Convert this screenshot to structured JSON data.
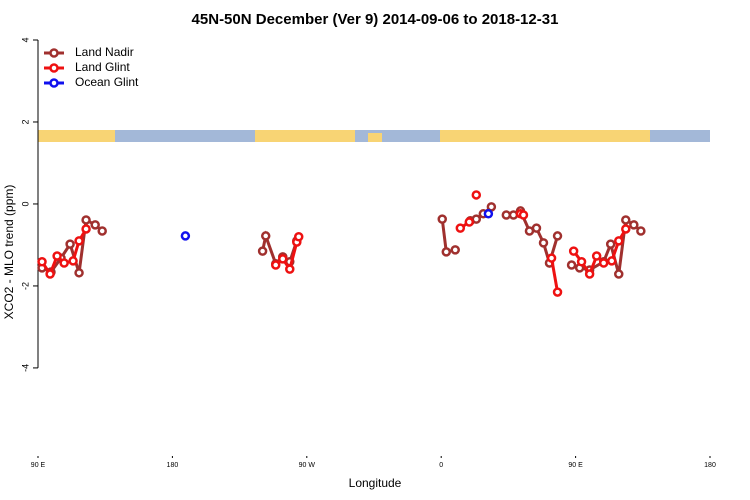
{
  "chart_data": {
    "type": "line",
    "title": "45N-50N December (Ver 9)   2014-09-06 to 2018-12-31",
    "x_label": "Longitude",
    "y_label": "XCO2 - MLO trend (ppm)",
    "xlim": [
      90,
      540
    ],
    "xticks": [
      {
        "value": 90,
        "label": "90 E"
      },
      180,
      {
        "value": 270,
        "label": "90 W"
      },
      {
        "value": 360,
        "label": "0"
      },
      {
        "value": 450,
        "label": "90 E"
      },
      {
        "value": 540,
        "label": "180"
      }
    ],
    "ylim": [
      -6.1,
      4
    ],
    "yticks": [
      4,
      2,
      0,
      -2,
      -4
    ],
    "grid": false,
    "legend": "top-left",
    "series": [
      {
        "name": "Land Nadir",
        "color": "#a0302e",
        "x": [
          92.7,
          98.7,
          105.4,
          111.5,
          117.5,
          122.2,
          128.3,
          133.0,
          null,
          240.4,
          242.5,
          249.2,
          253.9,
          258.6,
          263.3,
          null,
          360.7,
          363.4,
          369.4,
          null,
          379.5,
          383.5,
          388.2,
          393.6,
          null,
          403.6,
          408.4,
          413.1,
          419.1,
          423.8,
          428.5,
          432.5,
          437.9,
          null,
          447.3,
          452.7,
          459.4,
          468.8,
          473.5,
          478.9,
          483.6,
          489.0,
          493.7
        ],
        "values": [
          -1.56,
          -1.66,
          -1.32,
          -0.98,
          -1.68,
          -0.39,
          -0.51,
          -0.66,
          null,
          -1.15,
          -0.78,
          -1.46,
          -1.29,
          -1.41,
          -0.9,
          null,
          -0.37,
          -1.17,
          -1.12,
          null,
          -0.41,
          -0.37,
          -0.24,
          -0.07,
          null,
          -0.27,
          -0.27,
          -0.17,
          -0.66,
          -0.59,
          -0.95,
          -1.44,
          -0.78,
          null,
          -1.49,
          -1.56,
          -1.61,
          -1.41,
          -0.98,
          -1.71,
          -0.39,
          -0.51,
          -0.66
        ]
      },
      {
        "name": "Land Glint",
        "color": "#ee1111",
        "x": [
          92.7,
          98.1,
          102.8,
          107.5,
          113.5,
          117.5,
          122.2,
          null,
          249.2,
          253.9,
          258.6,
          263.3,
          264.6,
          null,
          372.8,
          378.8,
          null,
          383.5,
          null,
          413.1,
          415.1,
          null,
          433.9,
          437.9,
          null,
          448.7,
          454.0,
          459.4,
          464.1,
          468.8,
          474.2,
          478.9,
          483.6
        ],
        "values": [
          -1.41,
          -1.71,
          -1.27,
          -1.44,
          -1.39,
          -0.9,
          -0.61,
          null,
          -1.49,
          -1.34,
          -1.59,
          -0.93,
          -0.8,
          null,
          -0.59,
          -0.44,
          null,
          0.22,
          null,
          -0.24,
          -0.27,
          null,
          -1.32,
          -2.15,
          null,
          -1.15,
          -1.41,
          -1.71,
          -1.27,
          -1.44,
          -1.39,
          -0.9,
          -0.61
        ]
      },
      {
        "name": "Ocean Glint",
        "color": "#1010ee",
        "x": [
          188.7,
          null,
          391.6
        ],
        "values": [
          -0.78,
          null,
          -0.24
        ]
      }
    ]
  }
}
